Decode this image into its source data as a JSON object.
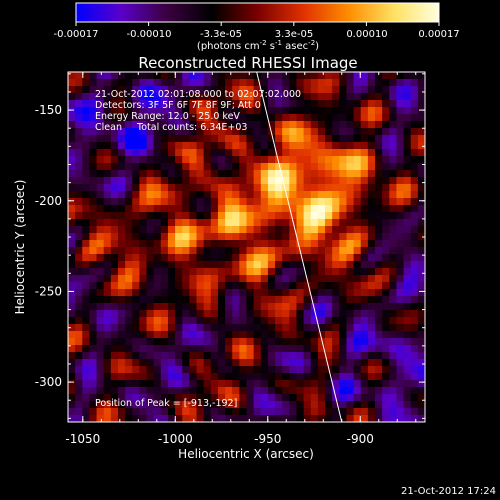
{
  "colorbar": {
    "ticks": [
      "-0.00017",
      "-0.00010",
      "-3.3e-05",
      "3.3e-05",
      "0.00010",
      "0.00017"
    ],
    "units_main": "(photons cm",
    "units_sup1": "-2",
    "units_mid": " s",
    "units_sup2": "-1",
    "units_end": " asec",
    "units_sup3": "-2",
    "units_close": ")",
    "colors": [
      "#0000ff",
      "#5a00c8",
      "#3a0040",
      "#000000",
      "#7a0000",
      "#e03000",
      "#ff8c00",
      "#ffe060",
      "#ffffe0"
    ]
  },
  "chart_data": {
    "type": "heatmap",
    "title": "Reconstructed RHESSI Image",
    "xlabel": "Heliocentric X (arcsec)",
    "ylabel": "Heliocentric Y (arcsec)",
    "xlim": [
      -1058,
      -865
    ],
    "ylim": [
      -322,
      -129
    ],
    "xticks": [
      -1050,
      -1000,
      -950,
      -900
    ],
    "xtick_labels": [
      "-1050",
      "-1000",
      "-950",
      "-900"
    ],
    "yticks": [
      -300,
      -250,
      -200,
      -150
    ],
    "ytick_labels": [
      "-300",
      "-250",
      "-200",
      "-150"
    ],
    "value_range": [
      -0.00017,
      0.00017
    ],
    "limb_line": [
      [
        -956,
        -129
      ],
      [
        -910,
        -322
      ]
    ],
    "peak": [
      -913,
      -192
    ]
  },
  "annotations": {
    "line1": "21-Oct-2012 02:01:08.000 to 02:07:02.000",
    "line2": "Detectors: 3F 5F 6F 7F 8F 9F; Att 0",
    "line3": "Energy Range: 12.0 - 25.0 keV",
    "line4": "Clean     Total counts: 6.34E+03",
    "peak_label": "Position of Peak = [-913,-192]"
  },
  "footer_timestamp": "21-Oct-2012 17:24"
}
